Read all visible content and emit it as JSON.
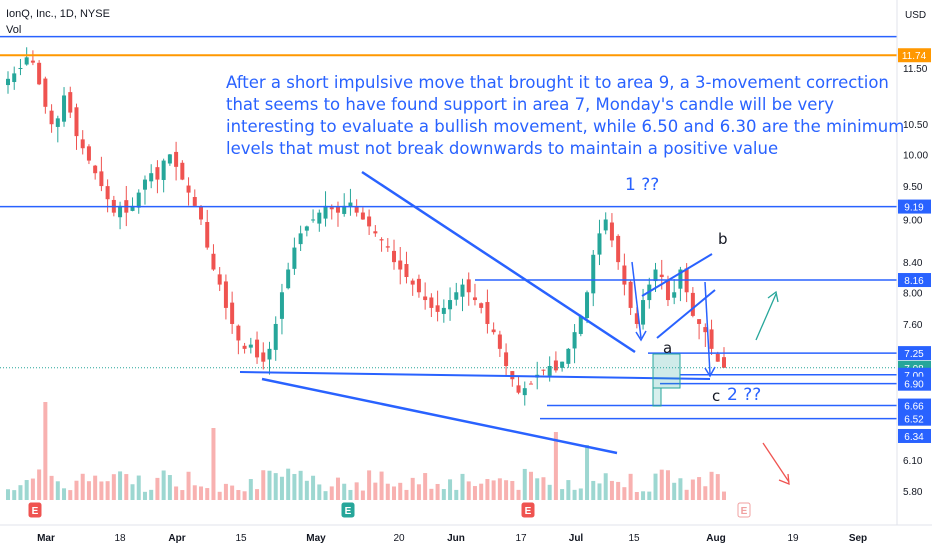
{
  "header": {
    "symbol_line": "IonQ, Inc., 1D, NYSE",
    "volume_label": "Vol"
  },
  "currency": "USD",
  "annotation_text": "After a short impulsive move that brought it to area 9, a 3-movement correction that seems to have found support in area 7, Monday's candle will be very interesting to evaluate a bullish movement, while 6.50 and 6.30 are the minimum levels that must not break downwards to maintain a positive value",
  "wave_labels": {
    "one": "1 ??",
    "a": "a",
    "b": "b",
    "c": "c",
    "two": "2 ??"
  },
  "earnings_marker": "E",
  "colors": {
    "up": "#26a69a",
    "down": "#ef5350",
    "drawing": "#2962ff",
    "orange_line": "#ff9800",
    "arrow_up": "#26a69a",
    "arrow_down": "#ef5350"
  },
  "chart_data": {
    "type": "candlestick",
    "scale": "log",
    "y_axis_ticks": [
      "11.50",
      "10.50",
      "10.00",
      "9.50",
      "9.00",
      "8.40",
      "8.00",
      "7.60",
      "7.00",
      "6.10",
      "5.80"
    ],
    "x_axis_ticks": [
      "Mar",
      "18",
      "Apr",
      "15",
      "May",
      "20",
      "Jun",
      "17",
      "Jul",
      "15",
      "Aug",
      "19",
      "Sep"
    ],
    "price_labels": [
      {
        "text": "11.74",
        "value": 11.74,
        "color": "#ff9800"
      },
      {
        "text": "9.19",
        "value": 9.19,
        "color": "#2962ff"
      },
      {
        "text": "8.16",
        "value": 8.16,
        "color": "#2962ff"
      },
      {
        "text": "7.25",
        "value": 7.25,
        "color": "#2962ff"
      },
      {
        "text": "7.08",
        "value": 7.08,
        "color": "#26a69a"
      },
      {
        "text": "7.00",
        "value": 7.0,
        "color": "#2962ff"
      },
      {
        "text": "6.90",
        "value": 6.9,
        "color": "#2962ff"
      },
      {
        "text": "6.66",
        "value": 6.66,
        "color": "#2962ff"
      },
      {
        "text": "6.52",
        "value": 6.52,
        "color": "#2962ff"
      },
      {
        "text": "6.34",
        "value": 6.34,
        "color": "#2962ff"
      }
    ],
    "horizontal_levels": [
      12.1,
      11.74,
      9.19,
      8.16,
      7.25,
      7.0,
      6.9,
      6.66,
      6.52
    ],
    "close_series": [
      11.3,
      11.4,
      11.5,
      11.7,
      11.6,
      11.2,
      10.8,
      10.5,
      10.6,
      11.0,
      10.7,
      10.3,
      10.1,
      9.9,
      9.7,
      9.5,
      9.3,
      9.1,
      9.2,
      9.1,
      9.2,
      9.4,
      9.6,
      9.7,
      9.6,
      9.9,
      10.0,
      9.8,
      9.6,
      9.4,
      9.2,
      9.0,
      8.6,
      8.3,
      8.1,
      7.8,
      7.6,
      7.4,
      7.3,
      7.35,
      7.2,
      7.15,
      7.3,
      7.6,
      8.0,
      8.3,
      8.6,
      8.8,
      8.9,
      9.0,
      9.1,
      9.2,
      9.15,
      9.1,
      9.2,
      9.25,
      9.1,
      9.0,
      8.9,
      8.8,
      8.7,
      8.6,
      8.4,
      8.3,
      8.2,
      8.1,
      8.0,
      7.9,
      7.8,
      7.75,
      7.8,
      7.9,
      8.0,
      8.1,
      8.0,
      7.9,
      7.8,
      7.6,
      7.5,
      7.3,
      7.1,
      6.95,
      6.8,
      6.85,
      6.9,
      7.0,
      7.05,
      7.1,
      7.05,
      7.15,
      7.3,
      7.5,
      7.7,
      8.0,
      8.5,
      8.8,
      9.0,
      8.7,
      8.4,
      8.1,
      7.8,
      7.6,
      7.9,
      8.1,
      8.3,
      8.2,
      7.9,
      8.0,
      8.3,
      8.0,
      7.7,
      7.6,
      7.5,
      7.3,
      7.15,
      7.08
    ]
  }
}
